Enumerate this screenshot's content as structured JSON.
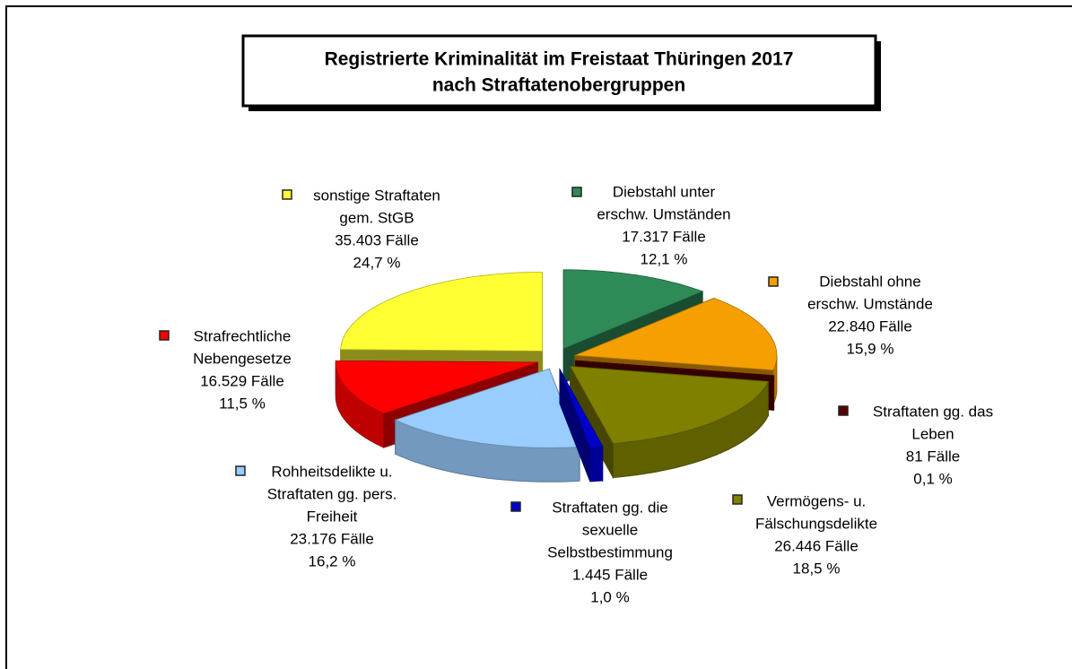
{
  "chart_data": {
    "type": "pie",
    "title": "Registrierte Kriminalität im Freistaat Thüringen 2017",
    "subtitle": "nach Straftatenobergruppen",
    "categories": [
      [
        "Diebstahl unter",
        "erschw. Umständen"
      ],
      [
        "Diebstahl ohne",
        "erschw. Umstände"
      ],
      [
        "Straftaten gg. das",
        "Leben"
      ],
      [
        "Vermögens- u.",
        "Fälschungsdelikte"
      ],
      [
        "Straftaten gg. die",
        "sexuelle",
        "Selbstbestimmung"
      ],
      [
        "Rohheitsdelikte  u.",
        "Straftaten gg. pers.",
        "Freiheit"
      ],
      [
        "Strafrechtliche",
        "Nebengesetze"
      ],
      [
        "sonstige Straftaten",
        "gem. StGB"
      ]
    ],
    "values": [
      12.1,
      15.9,
      0.1,
      18.5,
      1.0,
      16.2,
      11.5,
      24.7
    ],
    "value_labels": [
      "12,1 %",
      "15,9 %",
      "0,1 %",
      "18,5 %",
      "1,0 %",
      "16,2 %",
      "11,5 %",
      "24,7 %"
    ],
    "counts": [
      17317,
      22840,
      81,
      26446,
      1445,
      23176,
      16529,
      35403
    ],
    "count_labels": [
      "17.317 Fälle",
      "22.840 Fälle",
      "81 Fälle",
      "26.446 Fälle",
      "1.445 Fälle",
      "23.176 Fälle",
      "16.529 Fälle",
      "35.403 Fälle"
    ],
    "colors": [
      "#2e8b57",
      "#f5a000",
      "#5a0000",
      "#808000",
      "#0000cc",
      "#99ccff",
      "#ff0000",
      "#ffff33"
    ]
  }
}
